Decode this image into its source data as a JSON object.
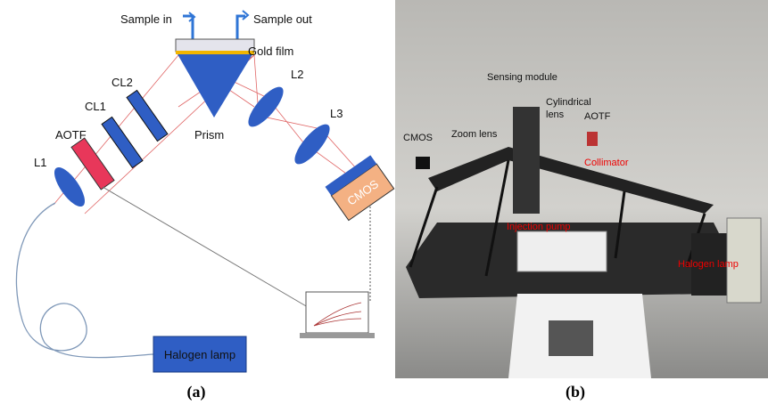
{
  "panel_a": {
    "labels": {
      "sample_in": "Sample in",
      "sample_out": "Sample out",
      "gold_film": "Gold film",
      "prism": "Prism",
      "l1": "L1",
      "aotf": "AOTF",
      "cl1": "CL1",
      "cl2": "CL2",
      "l2": "L2",
      "l3": "L3",
      "cmos": "CMOS",
      "halogen_lamp": "Halogen lamp"
    },
    "caption": "(a)"
  },
  "panel_b": {
    "labels": {
      "sensing_module": "Sensing module",
      "cmos": "CMOS",
      "zoom_lens": "Zoom lens",
      "cylindrical_lens": [
        "Cylindrical",
        "lens"
      ],
      "aotf": "AOTF",
      "collimator": "Collimator",
      "injection_pump": "Injection pump",
      "halogen_lamp": "Halogen lamp"
    },
    "caption": "(b)"
  }
}
